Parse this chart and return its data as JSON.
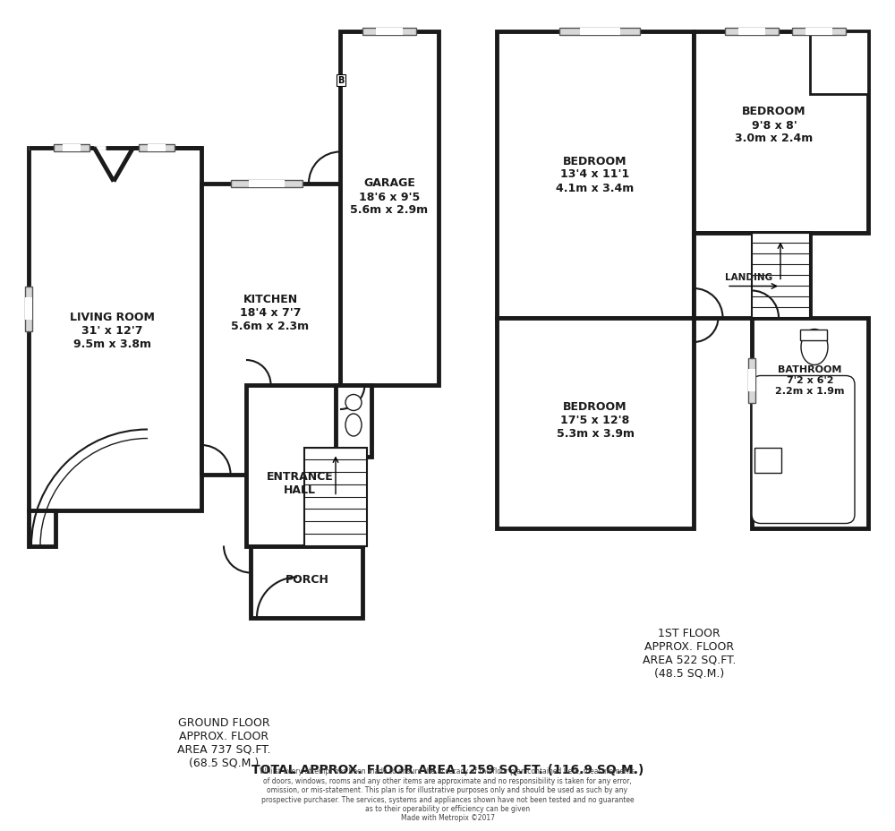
{
  "bg_color": "#ffffff",
  "wall_color": "#1a1a1a",
  "wall_lw": 3.5,
  "ground_floor_text": "GROUND FLOOR\nAPPROX. FLOOR\nAREA 737 SQ.FT.\n(68.5 SQ.M.)",
  "first_floor_text": "1ST FLOOR\nAPPROX. FLOOR\nAREA 522 SQ.FT.\n(48.5 SQ.M.)",
  "total_text": "TOTAL APPROX. FLOOR AREA 1259 SQ.FT. (116.9 SQ.M.)",
  "disclaimer": "Whilst every attempt has been made to ensure the accuracy of the floor plan contained here, measurements\nof doors, windows, rooms and any other items are approximate and no responsibility is taken for any error,\nomission, or mis-statement. This plan is for illustrative purposes only and should be used as such by any\nprospective purchaser. The services, systems and appliances shown have not been tested and no guarantee\nas to their operability or efficiency can be given\nMade with Metropix ©2017"
}
